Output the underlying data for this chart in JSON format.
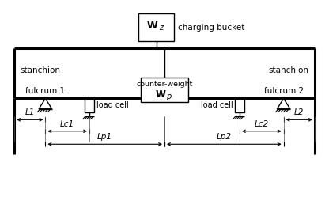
{
  "bg_color": "#ffffff",
  "line_color": "#000000",
  "fig_width": 4.16,
  "fig_height": 2.49,
  "dpi": 100,
  "charging_bucket_label": "charging bucket",
  "stanchion_left_label": "stanchion",
  "stanchion_right_label": "stanchion",
  "fulcrum1_label": "fulcrum 1",
  "fulcrum2_label": "fulcrum 2",
  "load_cell_label": "load cell",
  "L1_label": "L1",
  "L2_label": "L2",
  "Lc1_label": "Lc1",
  "Lc2_label": "Lc2",
  "Lp1_label": "Lp1",
  "Lp2_label": "Lp2",
  "xlim": [
    0,
    10
  ],
  "ylim": [
    0,
    6.0
  ]
}
